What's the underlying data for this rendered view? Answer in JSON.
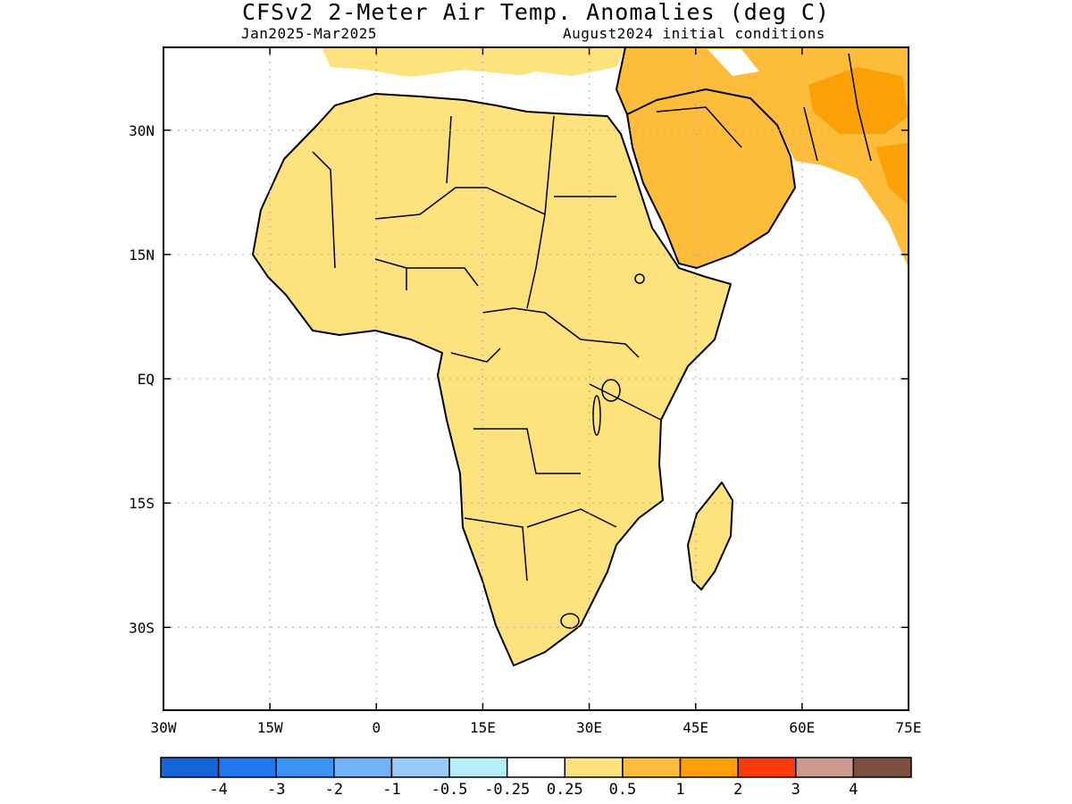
{
  "title": "CFSv2 2-Meter Air Temp. Anomalies (deg C)",
  "subtitle_left": "Jan2025-Mar2025",
  "subtitle_right": "August2024 initial conditions",
  "map": {
    "projection": "equirectangular",
    "lon_range": [
      -30,
      75
    ],
    "lat_range": [
      -40,
      40
    ],
    "lon_ticks": [
      {
        "value": -30,
        "label": "30W"
      },
      {
        "value": -15,
        "label": "15W"
      },
      {
        "value": 0,
        "label": "0"
      },
      {
        "value": 15,
        "label": "15E"
      },
      {
        "value": 30,
        "label": "30E"
      },
      {
        "value": 45,
        "label": "45E"
      },
      {
        "value": 60,
        "label": "60E"
      },
      {
        "value": 75,
        "label": "75E"
      }
    ],
    "lat_ticks": [
      {
        "value": 30,
        "label": "30N"
      },
      {
        "value": 15,
        "label": "15N"
      },
      {
        "value": 0,
        "label": "EQ"
      },
      {
        "value": -15,
        "label": "15S"
      },
      {
        "value": -30,
        "label": "30S"
      }
    ],
    "grid": "dotted"
  },
  "colorbar": {
    "colors": [
      "#1565d8",
      "#2077ef",
      "#3d92f5",
      "#73b2f7",
      "#97cbfa",
      "#b4effa",
      "#ffffff",
      "#fee27e",
      "#fdbc3a",
      "#fd9f07",
      "#fc3a0c",
      "#c99a8d",
      "#7c4f43"
    ],
    "labels": [
      "-4",
      "-3",
      "-2",
      "-1",
      "-0.5",
      "-0.25",
      "0.25",
      "0.5",
      "1",
      "2",
      "3",
      "4"
    ]
  },
  "anomaly_colors": {
    "light": "#fee27e",
    "medium": "#fdbc3a",
    "strong": "#fd9f07"
  }
}
